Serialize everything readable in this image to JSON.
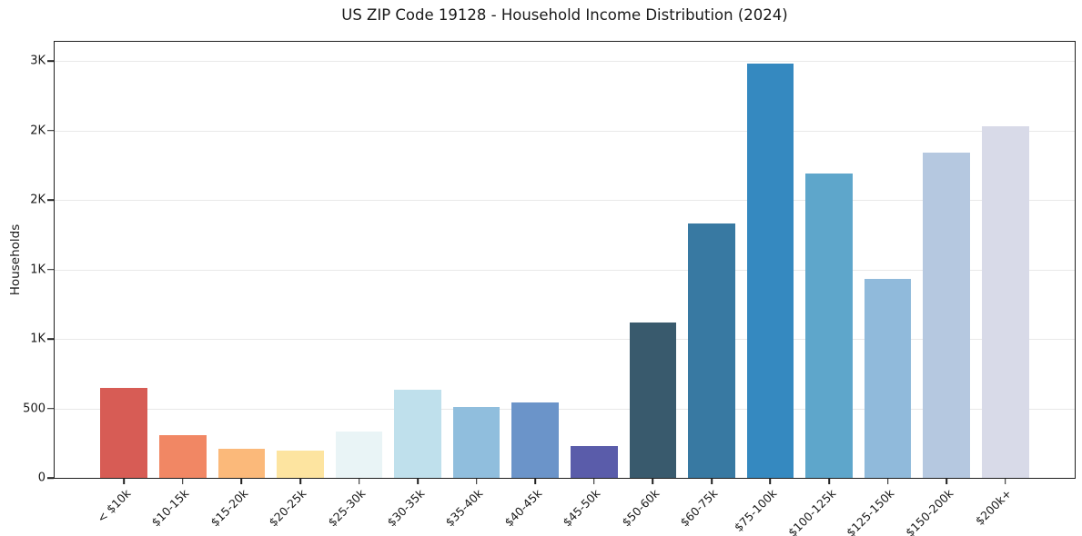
{
  "chart_data": {
    "type": "bar",
    "title": "US ZIP Code 19128 - Household Income Distribution (2024)",
    "xlabel": "",
    "ylabel": "Households",
    "categories": [
      "< $10k",
      "$10-15k",
      "$15-20k",
      "$20-25k",
      "$25-30k",
      "$30-35k",
      "$35-40k",
      "$40-45k",
      "$45-50k",
      "$50-60k",
      "$60-75k",
      "$75-100k",
      "$100-125k",
      "$125-150k",
      "$150-200k",
      "$200k+"
    ],
    "values": [
      650,
      305,
      210,
      195,
      335,
      635,
      510,
      545,
      230,
      1120,
      1830,
      2980,
      2190,
      1430,
      2345,
      2530
    ],
    "bar_colors": [
      "#d75c55",
      "#f18764",
      "#fbb97a",
      "#fde4a0",
      "#e9f4f6",
      "#bfe0ec",
      "#90bedd",
      "#6b94c9",
      "#5a5caa",
      "#395a6d",
      "#3879a2",
      "#3589c0",
      "#5ea6cb",
      "#90badb",
      "#b5c8e0",
      "#d8dae8"
    ],
    "ylim": [
      0,
      3140
    ],
    "ymax": 3140,
    "yticks": [
      {
        "value": 0,
        "label": "0"
      },
      {
        "value": 500,
        "label": "500"
      },
      {
        "value": 1000,
        "label": "1K"
      },
      {
        "value": 1500,
        "label": "1K"
      },
      {
        "value": 2000,
        "label": "2K"
      },
      {
        "value": 2500,
        "label": "2K"
      },
      {
        "value": 3000,
        "label": "3K"
      }
    ],
    "grid": "horizontal",
    "legend": "none"
  },
  "colors": {
    "background": "#ffffff",
    "spine": "#1f1f1f",
    "grid": "#e8e8e8",
    "text": "#1a1a1a"
  }
}
